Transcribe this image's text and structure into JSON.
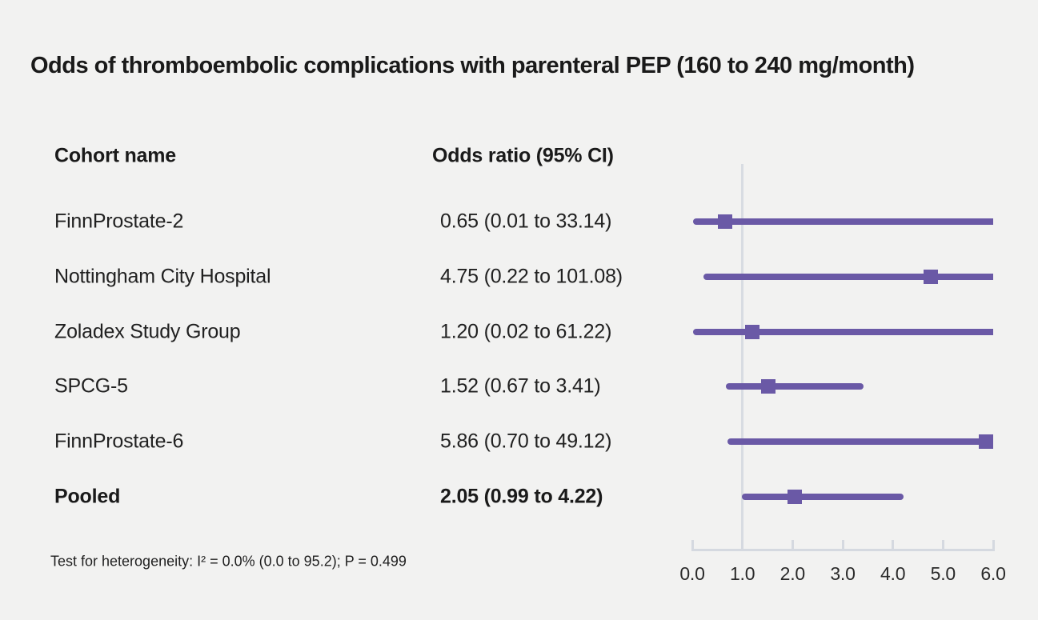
{
  "title": "Odds of thromboembolic complications with parenteral PEP (160 to 240 mg/month)",
  "table": {
    "col1_header": "Cohort name",
    "col2_header": "Odds ratio (95% CI)",
    "rows": [
      {
        "label": "FinnProstate-2",
        "or_text": "0.65 (0.01 to 33.14)",
        "bold": false
      },
      {
        "label": "Nottingham City Hospital",
        "or_text": "4.75 (0.22 to 101.08)",
        "bold": false
      },
      {
        "label": "Zoladex Study Group",
        "or_text": "1.20 (0.02 to 61.22)",
        "bold": false
      },
      {
        "label": "SPCG-5",
        "or_text": "1.52 (0.67 to 3.41)",
        "bold": false
      },
      {
        "label": "FinnProstate-6",
        "or_text": "5.86 (0.70 to 49.12)",
        "bold": false
      },
      {
        "label": "Pooled",
        "or_text": "2.05 (0.99 to 4.22)",
        "bold": true
      }
    ]
  },
  "footnote": "Test for heterogeneity: I² = 0.0% (0.0 to 95.2); P = 0.499",
  "chart_data": {
    "type": "forest",
    "title": "Odds of thromboembolic complications with parenteral PEP (160 to 240 mg/month)",
    "xlabel": "Odds ratio",
    "axis": {
      "min": 0.0,
      "max": 6.0,
      "ticks": [
        0.0,
        1.0,
        2.0,
        3.0,
        4.0,
        5.0,
        6.0
      ],
      "tick_labels": [
        "0.0",
        "1.0",
        "2.0",
        "3.0",
        "4.0",
        "5.0",
        "6.0"
      ],
      "reference_line": 1.0,
      "grid": false
    },
    "series": [
      {
        "label": "FinnProstate-2",
        "estimate": 0.65,
        "ci_lower": 0.01,
        "ci_upper": 33.14,
        "pooled": false
      },
      {
        "label": "Nottingham City Hospital",
        "estimate": 4.75,
        "ci_lower": 0.22,
        "ci_upper": 101.08,
        "pooled": false
      },
      {
        "label": "Zoladex Study Group",
        "estimate": 1.2,
        "ci_lower": 0.02,
        "ci_upper": 61.22,
        "pooled": false
      },
      {
        "label": "SPCG-5",
        "estimate": 1.52,
        "ci_lower": 0.67,
        "ci_upper": 3.41,
        "pooled": false
      },
      {
        "label": "FinnProstate-6",
        "estimate": 5.86,
        "ci_lower": 0.7,
        "ci_upper": 49.12,
        "pooled": false
      },
      {
        "label": "Pooled",
        "estimate": 2.05,
        "ci_lower": 0.99,
        "ci_upper": 4.22,
        "pooled": true
      }
    ],
    "colors": {
      "marker": "#6a59a6",
      "ci_line": "#6a59a6",
      "axis": "#d5d9e0",
      "reference_line": "#d8dce2",
      "background": "#f2f2f1",
      "text": "#1f1f1f"
    }
  }
}
